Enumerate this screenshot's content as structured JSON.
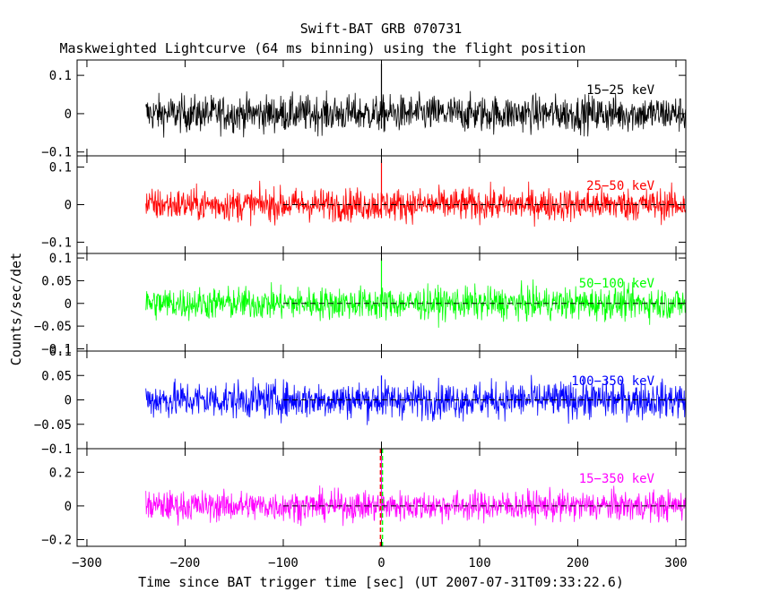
{
  "chart_data": {
    "type": "line",
    "title": "Swift-BAT GRB 070731",
    "subtitle": "Maskweighted Lightcurve (64 ms binning) using the flight position",
    "xlabel": "Time since BAT trigger time [sec] (UT 2007-07-31T09:33:22.6)",
    "ylabel": "Counts/sec/det",
    "xlim": [
      -310,
      310
    ],
    "x_ticks": [
      -300,
      -200,
      -100,
      0,
      100,
      200,
      300
    ],
    "data_x_range": [
      -240,
      310
    ],
    "trigger_time": 0,
    "grid": false,
    "panels": [
      {
        "name": "15-25 keV",
        "label": "15−25 keV",
        "color": "#000000",
        "ylim": [
          -0.11,
          0.14
        ],
        "y_ticks": [
          -0.1,
          0,
          0.1
        ],
        "y_tick_labels": [
          "−0.1",
          "0",
          "0.1"
        ],
        "noise_sigma": 0.024,
        "spike_at_trigger": 0.13,
        "zero_line": false
      },
      {
        "name": "25-50 keV",
        "label": "25−50 keV",
        "color": "#ff0000",
        "ylim": [
          -0.13,
          0.13
        ],
        "y_ticks": [
          -0.1,
          0,
          0.1
        ],
        "y_tick_labels": [
          "−0.1",
          "0",
          "0.1"
        ],
        "noise_sigma": 0.022,
        "spike_at_trigger": 0.12,
        "zero_line": true
      },
      {
        "name": "50-100 keV",
        "label": "50−100 keV",
        "color": "#00ff00",
        "ylim": [
          -0.105,
          0.11
        ],
        "y_ticks": [
          -0.1,
          -0.05,
          0,
          0.05,
          0.1
        ],
        "y_tick_labels": [
          "−0.1",
          "−0.05",
          "0",
          "0.05",
          "0.1"
        ],
        "noise_sigma": 0.018,
        "spike_at_trigger": 0.1,
        "zero_line": true
      },
      {
        "name": "100-350 keV",
        "label": "100−350 keV",
        "color": "#0000ff",
        "ylim": [
          -0.1,
          0.1
        ],
        "y_ticks": [
          -0.1,
          -0.05,
          0,
          0.05,
          0.1
        ],
        "y_tick_labels": [
          "−0.1",
          "−0.05",
          "0",
          "0.05",
          "0.1"
        ],
        "noise_sigma": 0.019,
        "spike_at_trigger": 0.05,
        "zero_line": true
      },
      {
        "name": "15-350 keV",
        "label": "15−350 keV",
        "color": "#ff00ff",
        "ylim": [
          -0.24,
          0.34
        ],
        "y_ticks": [
          -0.2,
          0,
          0.2
        ],
        "y_tick_labels": [
          "−0.2",
          "0",
          "0.2"
        ],
        "noise_sigma": 0.045,
        "spike_at_trigger": 0.3,
        "zero_line": true,
        "marker_lines": [
          {
            "x": -1,
            "color": "#ff0000"
          },
          {
            "x": 1,
            "color": "#00ff00"
          }
        ]
      }
    ],
    "x_tick_labels": [
      "−300",
      "−200",
      "−100",
      "0",
      "100",
      "200",
      "300"
    ]
  }
}
